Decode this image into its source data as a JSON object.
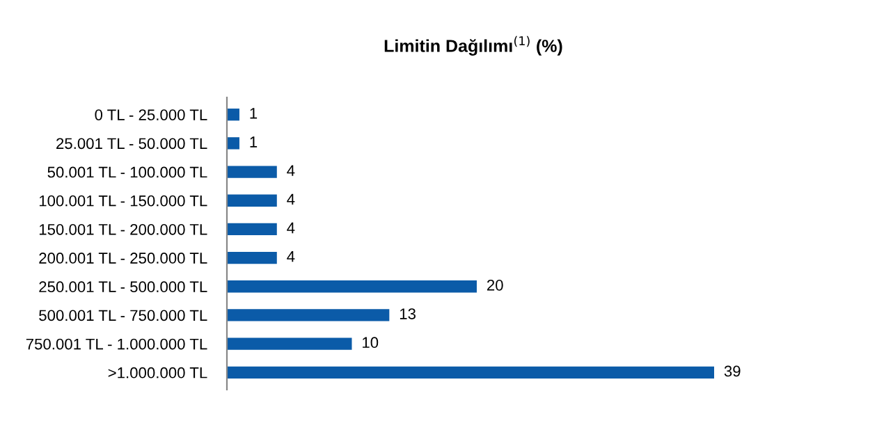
{
  "chart_data": {
    "type": "bar",
    "orientation": "horizontal",
    "title": "Limitin Dağılımı$^{(1)}$ (%)",
    "categories": [
      "0 TL - 25.000 TL",
      "25.001 TL - 50.000 TL",
      "50.001 TL - 100.000 TL",
      "100.001 TL - 150.000 TL",
      "150.001 TL - 200.000 TL",
      "200.001 TL - 250.000 TL",
      "250.001 TL - 500.000 TL",
      "500.001 TL - 750.000 TL",
      "750.001 TL - 1.000.000 TL",
      ">1.000.000 TL"
    ],
    "values": [
      1,
      1,
      4,
      4,
      4,
      4,
      20,
      13,
      10,
      39
    ],
    "color": "#0b5ba8",
    "data_labels": true,
    "grid": false,
    "legend": false
  }
}
